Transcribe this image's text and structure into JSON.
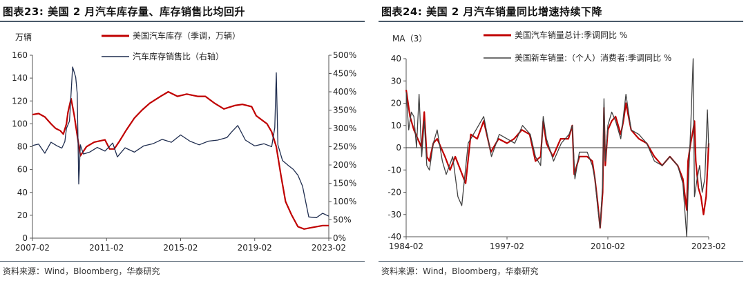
{
  "chart_data": [
    {
      "type": "line",
      "title": "图表23:  美国 2 月汽车库存量、库存销售比均回升",
      "ylabel": "万辆",
      "ylim": [
        0,
        160
      ],
      "yticks": [
        0,
        20,
        40,
        60,
        80,
        100,
        120,
        140,
        160
      ],
      "y2lim": [
        0,
        500
      ],
      "y2ticks": [
        "0%",
        "50%",
        "100%",
        "150%",
        "200%",
        "250%",
        "300%",
        "350%",
        "400%",
        "450%",
        "500%"
      ],
      "xlim": [
        "2007-02",
        "2023-02"
      ],
      "xticks": [
        "2007-02",
        "2011-02",
        "2015-02",
        "2019-02",
        "2023-02"
      ],
      "grid": false,
      "legend": "top-center",
      "series": [
        {
          "name": "美国汽车库存（季调，万辆）",
          "color": "#c00000",
          "axis": "left",
          "x": [
            "2007-02",
            "2007-06",
            "2007-10",
            "2008-02",
            "2008-05",
            "2008-08",
            "2008-10",
            "2008-12",
            "2009-01",
            "2009-03",
            "2009-05",
            "2009-07",
            "2009-09",
            "2010-01",
            "2010-06",
            "2011-01",
            "2011-04",
            "2011-07",
            "2011-10",
            "2012-03",
            "2012-08",
            "2013-01",
            "2013-06",
            "2014-01",
            "2014-06",
            "2014-12",
            "2015-06",
            "2016-01",
            "2016-06",
            "2016-12",
            "2017-06",
            "2018-01",
            "2018-06",
            "2018-12",
            "2019-03",
            "2019-06",
            "2019-10",
            "2020-01",
            "2020-04",
            "2020-07",
            "2020-10",
            "2021-02",
            "2021-06",
            "2021-10",
            "2022-02",
            "2022-06",
            "2022-10",
            "2023-02"
          ],
          "values": [
            108,
            109,
            106,
            100,
            96,
            94,
            91,
            100,
            110,
            122,
            108,
            90,
            72,
            80,
            84,
            86,
            78,
            78,
            84,
            95,
            105,
            112,
            118,
            124,
            128,
            124,
            126,
            124,
            124,
            118,
            113,
            116,
            117,
            115,
            107,
            104,
            100,
            93,
            80,
            55,
            32,
            20,
            10,
            8,
            9,
            10,
            11,
            11
          ]
        },
        {
          "name": "汽车库存销售比（右轴）",
          "color": "#1f2d4f",
          "axis": "right",
          "x": [
            "2007-02",
            "2007-06",
            "2007-10",
            "2008-02",
            "2008-06",
            "2008-09",
            "2008-11",
            "2008-12",
            "2009-02",
            "2009-04",
            "2009-06",
            "2009-07",
            "2009-08",
            "2009-09",
            "2009-11",
            "2010-03",
            "2010-08",
            "2011-01",
            "2011-06",
            "2011-09",
            "2012-02",
            "2012-08",
            "2013-02",
            "2013-08",
            "2014-02",
            "2014-08",
            "2015-02",
            "2015-08",
            "2016-02",
            "2016-08",
            "2017-02",
            "2017-08",
            "2017-11",
            "2018-03",
            "2018-08",
            "2019-02",
            "2019-08",
            "2020-01",
            "2020-03",
            "2020-04",
            "2020-05",
            "2020-08",
            "2020-12",
            "2021-03",
            "2021-06",
            "2021-09",
            "2022-01",
            "2022-06",
            "2022-10",
            "2023-02"
          ],
          "values": [
            253,
            257,
            232,
            262,
            252,
            246,
            264,
            300,
            320,
            468,
            440,
            395,
            148,
            255,
            230,
            235,
            248,
            238,
            260,
            222,
            247,
            235,
            252,
            258,
            270,
            262,
            282,
            265,
            255,
            265,
            268,
            275,
            290,
            308,
            268,
            252,
            258,
            250,
            302,
            452,
            255,
            212,
            198,
            188,
            172,
            142,
            58,
            56,
            68,
            60
          ]
        }
      ],
      "source": "资料来源：Wind，Bloomberg，华泰研究"
    },
    {
      "type": "line",
      "title": "图表24:  美国 2 月汽车销量同比增速持续下降",
      "ylabel": "MA（3）",
      "ylim": [
        -40,
        40
      ],
      "yticks": [
        -40,
        -30,
        -20,
        -10,
        0,
        10,
        20,
        30,
        40
      ],
      "xlim": [
        "1984-02",
        "2023-02"
      ],
      "xticks": [
        "1984-02",
        "1997-02",
        "2010-02",
        "2023-02"
      ],
      "grid": false,
      "legend": "top-center",
      "series": [
        {
          "name": "美国汽车销量总计:季调同比 %",
          "color": "#c00000",
          "x": [
            "1984-02",
            "1984-08",
            "1985-02",
            "1985-08",
            "1986-02",
            "1986-06",
            "1986-10",
            "1987-02",
            "1987-08",
            "1988-02",
            "1989-02",
            "1989-10",
            "1990-06",
            "1991-02",
            "1991-10",
            "1992-06",
            "1993-04",
            "1994-02",
            "1995-01",
            "1996-01",
            "1997-02",
            "1998-01",
            "1999-01",
            "2000-01",
            "2000-10",
            "2001-06",
            "2001-10",
            "2002-03",
            "2003-01",
            "2004-01",
            "2005-01",
            "2005-07",
            "2005-10",
            "2006-06",
            "2007-06",
            "2008-02",
            "2008-06",
            "2008-10",
            "2009-02",
            "2009-06",
            "2009-08",
            "2009-10",
            "2010-02",
            "2010-08",
            "2011-02",
            "2011-10",
            "2012-02",
            "2012-06",
            "2013-02",
            "2014-02",
            "2015-02",
            "2016-02",
            "2017-02",
            "2018-02",
            "2019-02",
            "2019-10",
            "2020-04",
            "2020-06",
            "2020-10",
            "2021-02",
            "2021-04",
            "2021-06",
            "2021-10",
            "2022-02",
            "2022-06",
            "2022-10",
            "2023-02"
          ],
          "values": [
            26,
            14,
            8,
            4,
            0,
            16,
            -4,
            -6,
            2,
            4,
            -4,
            -10,
            -4,
            -10,
            -16,
            6,
            4,
            12,
            -2,
            4,
            2,
            4,
            8,
            6,
            -6,
            -4,
            12,
            2,
            -4,
            4,
            4,
            10,
            -12,
            -4,
            -4,
            -6,
            -14,
            -24,
            -36,
            -20,
            18,
            -8,
            8,
            12,
            14,
            6,
            12,
            20,
            8,
            4,
            2,
            -4,
            -8,
            -4,
            -8,
            -14,
            -28,
            -6,
            2,
            8,
            12,
            -6,
            -18,
            -22,
            -30,
            -22,
            2
          ]
        },
        {
          "name": "美国新车销量:（个人）消费者:季调同比 %",
          "color": "#404040",
          "x": [
            "1984-02",
            "1984-06",
            "1984-10",
            "1985-02",
            "1985-06",
            "1985-10",
            "1986-02",
            "1986-06",
            "1986-10",
            "1987-02",
            "1987-08",
            "1988-02",
            "1988-10",
            "1989-04",
            "1990-02",
            "1990-10",
            "1991-04",
            "1992-02",
            "1993-02",
            "1994-02",
            "1995-02",
            "1996-02",
            "1997-02",
            "1998-02",
            "1999-02",
            "2000-02",
            "2000-10",
            "2001-06",
            "2001-10",
            "2002-03",
            "2003-02",
            "2004-02",
            "2005-02",
            "2005-07",
            "2005-11",
            "2006-06",
            "2007-06",
            "2008-02",
            "2008-06",
            "2008-10",
            "2009-02",
            "2009-06",
            "2009-08",
            "2009-10",
            "2010-02",
            "2010-08",
            "2011-02",
            "2011-10",
            "2012-06",
            "2013-02",
            "2014-02",
            "2015-02",
            "2016-02",
            "2017-02",
            "2018-02",
            "2019-02",
            "2019-10",
            "2020-04",
            "2020-06",
            "2020-08",
            "2020-10",
            "2021-02",
            "2021-04",
            "2021-08",
            "2021-12",
            "2022-04",
            "2022-08",
            "2022-12",
            "2023-02"
          ],
          "values": [
            25,
            8,
            16,
            14,
            0,
            24,
            -4,
            12,
            -8,
            -10,
            2,
            8,
            -6,
            -12,
            -4,
            -22,
            -26,
            2,
            8,
            14,
            -4,
            6,
            4,
            2,
            10,
            6,
            -4,
            -8,
            14,
            4,
            -6,
            2,
            6,
            10,
            -14,
            -2,
            -2,
            -8,
            -14,
            -26,
            -36,
            -16,
            22,
            -6,
            10,
            16,
            12,
            4,
            24,
            8,
            6,
            2,
            -6,
            -8,
            -4,
            -8,
            -16,
            -40,
            -20,
            -6,
            8,
            40,
            -22,
            -14,
            -8,
            -20,
            -14,
            17,
            0
          ]
        }
      ],
      "source": "资料来源：Wind，Bloomberg，华泰研究"
    }
  ]
}
